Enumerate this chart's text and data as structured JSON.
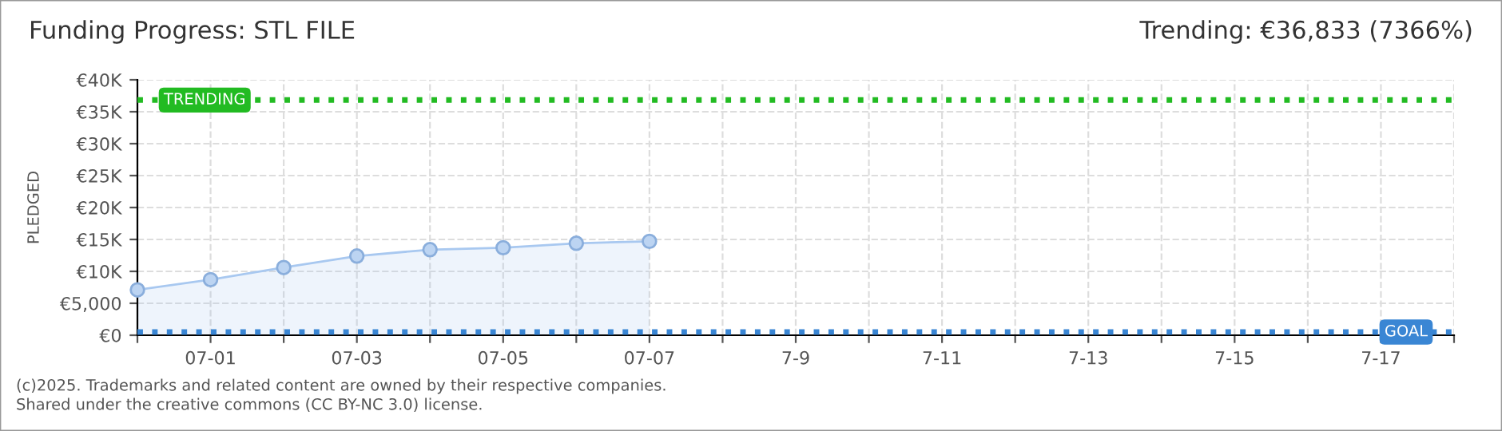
{
  "chart_data": {
    "type": "area",
    "title": "Funding Progress: STL FILE",
    "subtitle": "Trending: €36,833 (7366%)",
    "ylabel": "PLEDGED",
    "categories": [
      null,
      "07-01",
      null,
      "07-03",
      null,
      "07-05",
      null,
      "07-07",
      null,
      "7-9",
      null,
      "7-11",
      null,
      "7-13",
      null,
      "7-15",
      null,
      "7-17",
      null
    ],
    "series": [
      {
        "color": "#a8c8f0",
        "values": [
          7100,
          8700,
          10600,
          12400,
          13400,
          13700,
          14400,
          14700,
          null,
          null,
          null,
          null,
          null,
          null,
          null,
          null,
          null,
          null,
          null
        ]
      }
    ],
    "ylim": [
      0,
      40000
    ],
    "yticks": [
      {
        "value": 0,
        "label": "€0"
      },
      {
        "value": 5000,
        "label": "€5,000"
      },
      {
        "value": 10000,
        "label": "€10K"
      },
      {
        "value": 15000,
        "label": "€15K"
      },
      {
        "value": 20000,
        "label": "€20K"
      },
      {
        "value": 25000,
        "label": "€25K"
      },
      {
        "value": 30000,
        "label": "€30K"
      },
      {
        "value": 35000,
        "label": "€35K"
      },
      {
        "value": 40000,
        "label": "€40K"
      }
    ],
    "ref_lines": [
      {
        "axis": "y",
        "value": 36833,
        "label": "TRENDING",
        "color": "#22bb22",
        "line_style": "dotted"
      },
      {
        "axis": "y",
        "value": 500,
        "label": "GOAL",
        "color": "#3a86d4",
        "line_style": "dotted"
      }
    ],
    "grid": true,
    "marker": "circle",
    "annotations": [
      "(c)2025. Trademarks and related content are owned by their respective companies.",
      "Shared under the creative commons (CC BY-NC 3.0) license."
    ]
  }
}
